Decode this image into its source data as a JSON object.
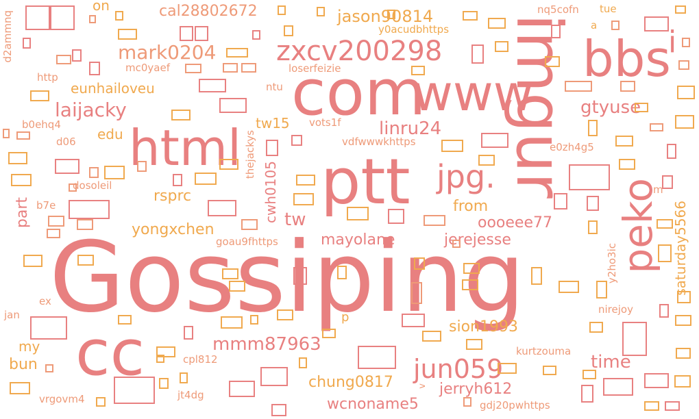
{
  "palette": {
    "pink": "#e88080",
    "orange": "#f0a94e",
    "salmon": "#ee9a78"
  },
  "words": {
    "gossiping": "Gossiping",
    "ptt": "ptt",
    "com": "com",
    "www": "www",
    "imgur": "imgur",
    "bbs": "bbs",
    "cc": "cc",
    "html": "html",
    "peko": "peko",
    "jpg": "jpg.",
    "zxcv200298": "zxcv200298",
    "i": "i",
    "mark0204": "mark0204",
    "laijacky": "laijacky",
    "eunhailoveu": "eunhailoveu",
    "jason90814": "jason90814",
    "cal28802672": "cal28802672",
    "on": "on",
    "y0acudbhttps": "y0acudbhttps",
    "nq5cofn": "nq5cofn",
    "tue": "tue",
    "a": "a",
    "mc0yaef": "mc0yaef",
    "loserfeizie": "loserfeizie",
    "ntu": "ntu",
    "http": "http",
    "d2ammnq": "d2ammnq",
    "gtyuse": "gtyuse",
    "linru24": "linru24",
    "tw15": "tw15",
    "vots1f": "vots1f",
    "b0ehq4": "b0ehq4",
    "edu": "edu",
    "d06": "d06",
    "vdfwwwkhttps": "vdfwwwkhttps",
    "e0zh4g5": "e0zh4g5",
    "thejackys": "thejackys",
    "cwh0105": "cwh0105",
    "dosoleil": "dosoleil",
    "rsprc": "rsprc",
    "part": "part",
    "b7e": "b7e",
    "tw": "tw",
    "from": "from",
    "oooeee77": "oooeee77",
    "yongxchen": "yongxchen",
    "saturday5566": "saturday5566",
    "m": "m",
    "mayolane": "mayolane",
    "jerejesse": "jerejesse",
    "goau9fhttps": "goau9fhttps",
    "y2ho3ic": "y2ho3ic",
    "nirejoy": "nirejoy",
    "ex": "ex",
    "jan": "jan",
    "p": "p",
    "sion1993": "sion1993",
    "mmm87963": "mmm87963",
    "my": "my",
    "bun": "bun",
    "cpl812": "cpl812",
    "kurtzouma": "kurtzouma",
    "time": "time",
    "jun059": "jun059",
    "chung0817": "chung0817",
    "jerryh612": "jerryh612",
    "jt4dg": "jt4dg",
    "wcnoname5": "wcnoname5",
    "vrgovm4": "vrgovm4",
    "gdj20pwhttps": "gdj20pwhttps",
    "v": "v"
  }
}
